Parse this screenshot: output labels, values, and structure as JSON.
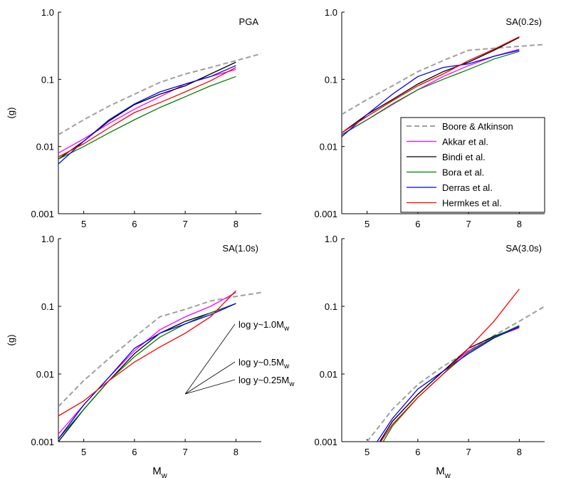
{
  "chart_data": [
    {
      "type": "line",
      "title": "PGA",
      "ylabel": "(g)",
      "log_y": true,
      "x": [
        4.5,
        5,
        5.5,
        6,
        6.5,
        7,
        7.5,
        8,
        8.5
      ],
      "xlim": [
        4.5,
        8.5
      ],
      "xticks": [
        5,
        6,
        7,
        8
      ],
      "ylim": [
        0.001,
        1
      ],
      "yticks": [
        0.001,
        0.01,
        0.1,
        {
          "value": 1,
          "label": "1.0"
        }
      ],
      "series": [
        {
          "color": "#a0a0a0",
          "dashed": true,
          "values": [
            0.015,
            0.025,
            0.04,
            0.06,
            0.09,
            0.12,
            0.15,
            0.19,
            0.24
          ]
        },
        {
          "color": "#ff00ff",
          "values": [
            0.008,
            0.013,
            0.022,
            0.036,
            0.055,
            0.085,
            0.11,
            0.14,
            null
          ]
        },
        {
          "color": "#000000",
          "values": [
            0.0065,
            0.012,
            0.024,
            0.042,
            0.06,
            0.08,
            0.12,
            0.18,
            null
          ]
        },
        {
          "color": "#008000",
          "values": [
            0.0065,
            0.01,
            0.016,
            0.025,
            0.038,
            0.055,
            0.08,
            0.11,
            null
          ]
        },
        {
          "color": "#0000ff",
          "values": [
            0.0055,
            0.012,
            0.025,
            0.043,
            0.065,
            0.085,
            0.11,
            0.16,
            null
          ]
        },
        {
          "color": "#ff0000",
          "values": [
            0.007,
            0.011,
            0.019,
            0.032,
            0.045,
            0.065,
            0.095,
            0.15,
            null
          ]
        }
      ]
    },
    {
      "type": "line",
      "title": "SA(0.2s)",
      "log_y": true,
      "legend": "lower right",
      "x": [
        4.5,
        5,
        5.5,
        6,
        6.5,
        7,
        7.5,
        8,
        8.5
      ],
      "xlim": [
        4.5,
        8.5
      ],
      "xticks": [
        5,
        6,
        7,
        8
      ],
      "ylim": [
        0.001,
        1
      ],
      "yticks": [
        0.001,
        0.01,
        0.1,
        {
          "value": 1,
          "label": "1.0"
        }
      ],
      "series": [
        {
          "name": "Boore & Atkinson",
          "color": "#a0a0a0",
          "dashed": true,
          "values": [
            0.03,
            0.05,
            0.08,
            0.13,
            0.19,
            0.27,
            0.29,
            0.31,
            0.33
          ]
        },
        {
          "name": "Akkar et al.",
          "color": "#ff00ff",
          "values": [
            0.015,
            0.025,
            0.042,
            0.07,
            0.11,
            0.16,
            0.22,
            0.28,
            null
          ]
        },
        {
          "name": "Bindi et al.",
          "color": "#000000",
          "values": [
            0.016,
            0.03,
            0.05,
            0.085,
            0.13,
            0.18,
            0.27,
            0.42,
            null
          ]
        },
        {
          "name": "Bora et al.",
          "color": "#008000",
          "values": [
            0.015,
            0.025,
            0.043,
            0.07,
            0.1,
            0.14,
            0.2,
            0.26,
            null
          ]
        },
        {
          "name": "Derras et al.",
          "color": "#0000ff",
          "values": [
            0.014,
            0.03,
            0.06,
            0.11,
            0.15,
            0.17,
            0.22,
            0.27,
            null
          ]
        },
        {
          "name": "Hermkes et al.",
          "color": "#ff0000",
          "values": [
            0.016,
            0.028,
            0.048,
            0.08,
            0.12,
            0.19,
            0.28,
            0.43,
            null
          ]
        }
      ]
    },
    {
      "type": "line",
      "title": "SA(1.0s)",
      "ylabel": "(g)",
      "xlabel": {
        "main": "M",
        "sub": "w"
      },
      "log_y": true,
      "x": [
        4.5,
        5,
        5.5,
        6,
        6.5,
        7,
        7.5,
        8,
        8.5
      ],
      "xlim": [
        4.5,
        8.5
      ],
      "xticks": [
        5,
        6,
        7,
        8
      ],
      "ylim": [
        0.001,
        1
      ],
      "yticks": [
        0.001,
        0.01,
        0.1,
        {
          "value": 1,
          "label": "1.0"
        }
      ],
      "annotations": [
        {
          "text": "log y~1.0M",
          "sub": "w"
        },
        {
          "text": "log y~0.5M",
          "sub": "w"
        },
        {
          "text": "log y~0.25M",
          "sub": "w"
        }
      ],
      "series": [
        {
          "color": "#a0a0a0",
          "dashed": true,
          "values": [
            0.0033,
            0.008,
            0.017,
            0.035,
            0.07,
            0.09,
            0.12,
            0.14,
            0.16
          ]
        },
        {
          "color": "#ff00ff",
          "values": [
            0.0013,
            0.0035,
            0.009,
            0.022,
            0.045,
            0.07,
            0.1,
            0.16,
            null
          ]
        },
        {
          "color": "#000000",
          "values": [
            0.001,
            0.003,
            0.008,
            0.02,
            0.04,
            0.06,
            0.08,
            0.11,
            null
          ]
        },
        {
          "color": "#008000",
          "values": [
            0.0011,
            0.003,
            0.008,
            0.018,
            0.035,
            0.055,
            0.08,
            0.11,
            null
          ]
        },
        {
          "color": "#0000ff",
          "values": [
            0.0011,
            0.0035,
            0.009,
            0.024,
            0.04,
            0.055,
            0.075,
            0.11,
            null
          ]
        },
        {
          "color": "#ff0000",
          "values": [
            0.0024,
            0.004,
            0.008,
            0.015,
            0.025,
            0.04,
            0.07,
            0.17,
            null
          ]
        }
      ]
    },
    {
      "type": "line",
      "title": "SA(3.0s)",
      "xlabel": {
        "main": "M",
        "sub": "w"
      },
      "log_y": true,
      "x": [
        4.5,
        5,
        5.5,
        6,
        6.5,
        7,
        7.5,
        8,
        8.5
      ],
      "xlim": [
        4.5,
        8.5
      ],
      "xticks": [
        5,
        6,
        7,
        8
      ],
      "ylim": [
        0.001,
        1
      ],
      "yticks": [
        0.001,
        0.01,
        0.1,
        {
          "value": 1,
          "label": "1.0"
        }
      ],
      "series": [
        {
          "color": "#a0a0a0",
          "dashed": true,
          "values": [
            null,
            0.001,
            0.003,
            0.007,
            0.013,
            0.022,
            0.037,
            0.06,
            0.1
          ]
        },
        {
          "color": "#ff00ff",
          "values": [
            null,
            0.0005,
            0.002,
            0.005,
            0.011,
            0.022,
            0.035,
            0.048,
            null
          ]
        },
        {
          "color": "#000000",
          "values": [
            null,
            0.0005,
            0.002,
            0.005,
            0.011,
            0.024,
            0.036,
            0.05,
            null
          ]
        },
        {
          "color": "#008000",
          "values": [
            null,
            0.0004,
            0.0017,
            0.0045,
            0.01,
            0.021,
            0.035,
            0.052,
            null
          ]
        },
        {
          "color": "#0000ff",
          "values": [
            null,
            0.0006,
            0.0022,
            0.006,
            0.011,
            0.02,
            0.034,
            0.05,
            null
          ]
        },
        {
          "color": "#ff0000",
          "values": [
            null,
            0.0005,
            0.0018,
            0.0045,
            0.01,
            0.024,
            0.06,
            0.18,
            null
          ]
        }
      ]
    }
  ]
}
